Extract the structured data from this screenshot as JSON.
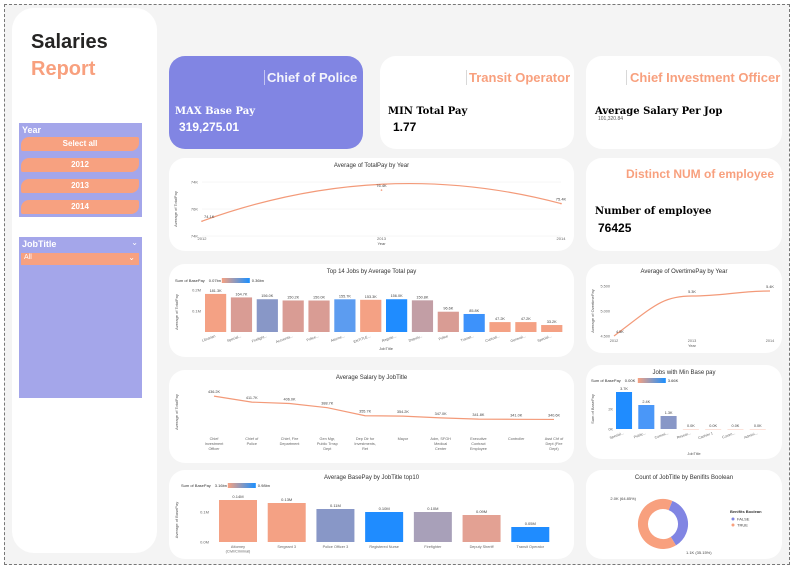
{
  "sidebar": {
    "title_line1": "Salaries",
    "title_line2": "Report",
    "year_slicer": {
      "header": "Year",
      "items": [
        "Select all",
        "2012",
        "2013",
        "2014"
      ]
    },
    "jobtitle_slicer": {
      "header": "JobTitle",
      "selected": "All"
    }
  },
  "kpis": [
    {
      "title": "Chief of Police",
      "label": "MAX Base Pay",
      "value": "319,275.01"
    },
    {
      "title": "Transit Operator",
      "label": "MIN Total Pay",
      "value": "1.77"
    },
    {
      "title": "Chief Investment Officer",
      "label": "Average Salary Per Jop",
      "value": "101,320.84"
    },
    {
      "title": "Distinct NUM of employee",
      "label": "Number of employee",
      "value": "76425"
    }
  ],
  "colors": {
    "accent": "#f8a07e",
    "highlight_card": "#8185e3",
    "slicer": "#a4a6ea",
    "gradient_low": "#f7a180",
    "gradient_high": "#1a8fff",
    "line": "#f39a79"
  },
  "chart_data": [
    {
      "type": "line",
      "title": "Average of TotalPay by Year",
      "xlabel": "Year",
      "ylabel": "Average of TotalPay",
      "x": [
        "2012",
        "2013",
        "2014"
      ],
      "values": [
        74.1,
        76.4,
        75.4
      ],
      "data_labels": [
        "74.1K",
        "76.4K",
        "75.4K"
      ],
      "y_ticks": [
        "74K",
        "76K",
        "74K"
      ]
    },
    {
      "type": "bar",
      "title": "Top 14 Jobs by Average Total pay",
      "xlabel": "JobTitle",
      "ylabel": "Average of TotalPay",
      "legend_title": "Sum of BasePay",
      "legend_min": "0.07bn",
      "legend_max": "0.36bn",
      "categories": [
        "Librarian",
        "Special...",
        "Firefight...",
        "Accounta...",
        "Police...",
        "Attorne...",
        "ENTITLE...",
        "Registe...",
        "Deputy...",
        "Police",
        "Transit...",
        "Custodi...",
        "General...",
        "Special..."
      ],
      "values": [
        181.3,
        164.7,
        156.0,
        150.2,
        150.0,
        155.7,
        153.3,
        156.0,
        150.8,
        96.6,
        85.8,
        47.2,
        47.2,
        33.2
      ],
      "data_labels": [
        "181.3K",
        "164.7K",
        "156.0K",
        "150.2K",
        "150.0K",
        "155.7K",
        "153.3K",
        "156.0K",
        "150.8K",
        "96.6K",
        "85.8K",
        "47.2K",
        "47.2K",
        "33.2K"
      ],
      "colors": [
        "#f4a184",
        "#d99c94",
        "#8897c7",
        "#d99c94",
        "#d99c94",
        "#5c9cf0",
        "#f4a184",
        "#1f8cff",
        "#c29ea5",
        "#d99c94",
        "#3d92fb",
        "#f4a184",
        "#f4a184",
        "#f4a184"
      ],
      "y_ticks": [
        "0.1M",
        "0.2M"
      ]
    },
    {
      "type": "line",
      "title": "Average of OvertimePay by Year",
      "xlabel": "Year",
      "ylabel": "Average of OvertimePay",
      "x": [
        "2012",
        "2013",
        "2014"
      ],
      "values": [
        4.5,
        5.3,
        5.4
      ],
      "data_labels": [
        "4.5K",
        "5.3K",
        "5.4K"
      ],
      "y_ticks": [
        "5.500",
        "5.000",
        "4.500"
      ]
    },
    {
      "type": "line",
      "title": "Average Salary by JobTitle",
      "xlabel": "JobTitle",
      "ylabel": "Average of TotalPay",
      "categories": [
        "Chief Investment Officer",
        "Chief of Police",
        "Chief, Fire Department",
        "Gen Mgr, Public Trnsp Dept",
        "Dep Dir for Investments, Ret",
        "Mayor",
        "Adm, SFGH Medical Center",
        "Executive Contract Employee",
        "Controller",
        "Asst Chf of Dept (Fire Dept)"
      ],
      "values": [
        436.2,
        411.7,
        406.0,
        388.7,
        355.7,
        354.2,
        347.0,
        341.8,
        341.0,
        340.6
      ],
      "data_labels": [
        "436.2K",
        "411.7K",
        "406.0K",
        "388.7K",
        "355.7K",
        "354.2K",
        "347.0K",
        "341.8K",
        "341.0K",
        "340.6K"
      ]
    },
    {
      "type": "bar",
      "title": "Jobs with Min Base pay",
      "xlabel": "JobTitle",
      "ylabel": "Sum of BasePay",
      "legend_title": "Sum of BasePay",
      "legend_min": "0.00K",
      "legend_max": "3.66K",
      "categories": [
        "Special...",
        "Public...",
        "Commi...",
        "Resear...",
        "Cashier 1",
        "Comm...",
        "Admini..."
      ],
      "values": [
        3.7,
        2.4,
        1.3,
        0.0,
        0.0,
        0.0,
        0.0
      ],
      "data_labels": [
        "3.7K",
        "2.4K",
        "1.3K",
        "0.0K",
        "0.0K",
        "0.0K",
        "0.0K"
      ],
      "colors": [
        "#1f8cff",
        "#4a97f8",
        "#8897c7",
        "#f4a184",
        "#f4a184",
        "#f4a184",
        "#f4a184"
      ],
      "y_ticks": [
        "2K",
        "0K"
      ]
    },
    {
      "type": "bar",
      "title": "Average BasePay by JobTitle top10",
      "xlabel": "JobTitle",
      "ylabel": "Average of BasePay",
      "legend_title": "Sum of BasePay",
      "legend_min": "3.16bn",
      "legend_max": "0.98bn",
      "categories": [
        "Attorney (Civil/Criminal)",
        "Sergeant 3",
        "Police Officer 3",
        "Registered Nurse",
        "Firefighter",
        "Deputy Sheriff",
        "Transit Operator"
      ],
      "values": [
        0.14,
        0.13,
        0.11,
        0.1,
        0.1,
        0.09,
        0.05
      ],
      "data_labels": [
        "0.14M",
        "0.13M",
        "0.11M",
        "0.10M",
        "0.10M",
        "0.09M",
        "0.05M"
      ],
      "colors": [
        "#f4a184",
        "#f4a184",
        "#8897c7",
        "#1f8cff",
        "#a8a0b9",
        "#e3a193",
        "#1f8cff"
      ],
      "y_ticks": [
        "0.1M",
        "0.0M"
      ]
    },
    {
      "type": "pie",
      "title": "Count of JobTitle by Benifits Boolean",
      "legend_title": "Benifits Boolean",
      "slices": [
        {
          "name": "FALSE",
          "value": 35.15,
          "label": "1.1K (35.15%)",
          "color": "#8185e3"
        },
        {
          "name": "TRUE",
          "value": 64.85,
          "label": "2.0K (64.85%)",
          "color": "#f8a07e"
        }
      ]
    }
  ]
}
